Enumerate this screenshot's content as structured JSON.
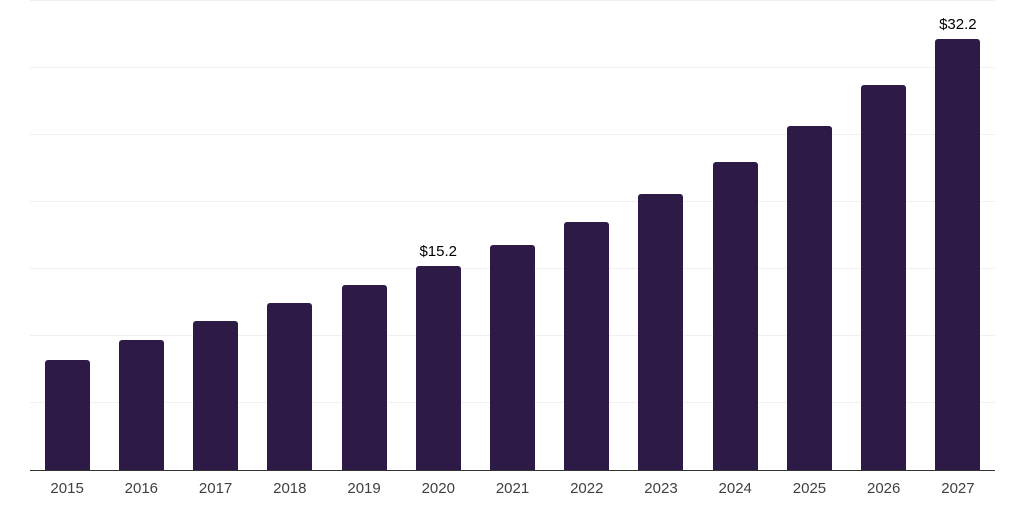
{
  "chart_data": {
    "type": "bar",
    "title": "",
    "xlabel": "",
    "ylabel": "",
    "categories": [
      "2015",
      "2016",
      "2017",
      "2018",
      "2019",
      "2020",
      "2021",
      "2022",
      "2023",
      "2024",
      "2025",
      "2026",
      "2027"
    ],
    "values": [
      8.2,
      9.7,
      11.1,
      12.5,
      13.8,
      15.2,
      16.8,
      18.5,
      20.6,
      23.0,
      25.7,
      28.7,
      32.2
    ],
    "annotations": [
      {
        "category": "2020",
        "text": "$15.2"
      },
      {
        "category": "2027",
        "text": "$32.2"
      }
    ],
    "ylim": [
      0,
      35
    ],
    "gridline_step": 5,
    "grid": "horizontal-only",
    "y_axis_labels_visible": false,
    "legend": "none",
    "value_prefix": "$"
  },
  "colors": {
    "bar": "#2e1a47",
    "gridline": "#f0f0f0",
    "axis_line": "#333333",
    "tick_label": "#404040",
    "data_label": "#000000",
    "background": "#ffffff"
  }
}
